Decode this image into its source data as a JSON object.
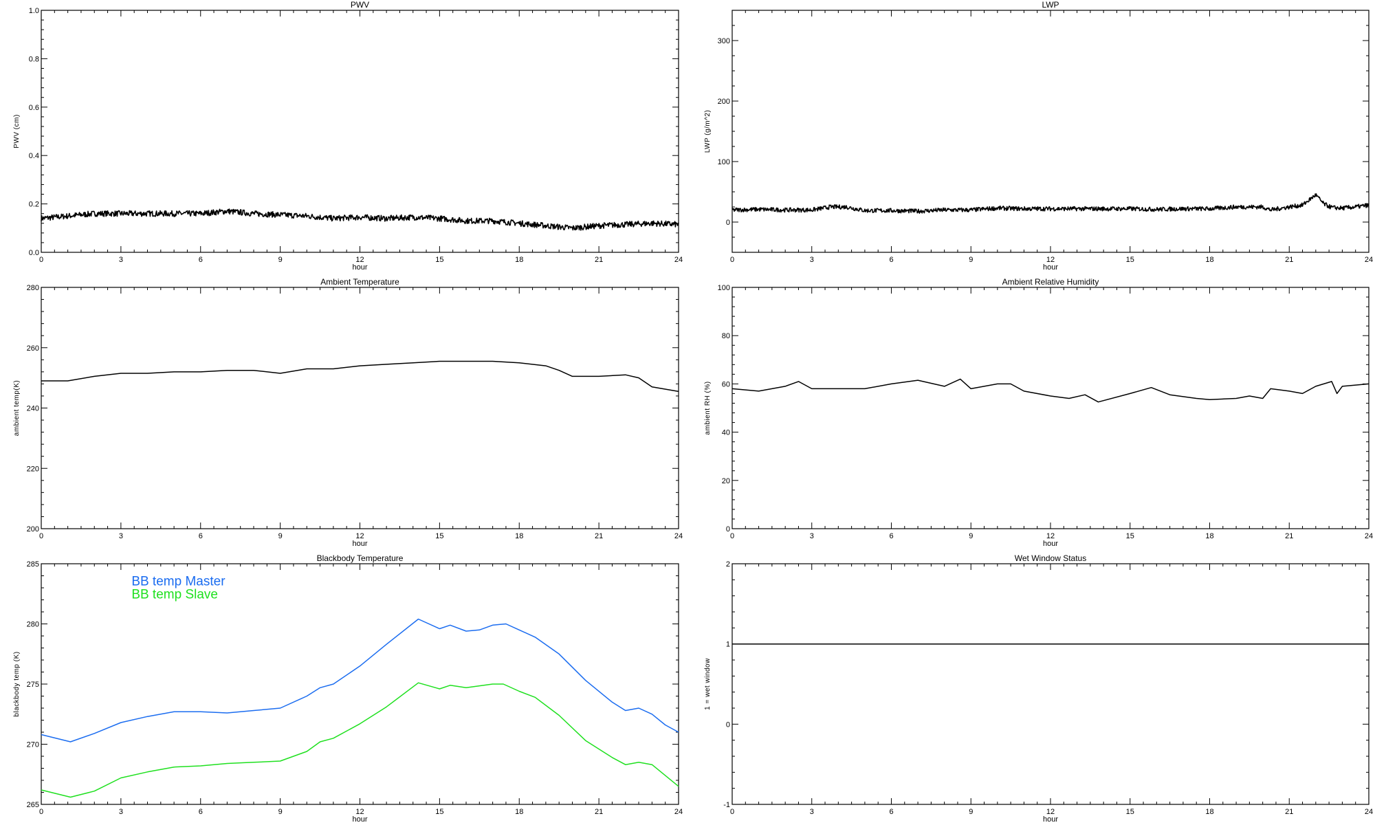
{
  "chart_data": [
    {
      "id": "pwv",
      "type": "line",
      "title": "PWV",
      "xlabel": "hour",
      "ylabel": "PWV (cm)",
      "xlim": [
        0,
        24
      ],
      "xticks": [
        0,
        3,
        6,
        9,
        12,
        15,
        18,
        21,
        24
      ],
      "ylim": [
        0,
        1
      ],
      "yticks": [
        0.0,
        0.2,
        0.4,
        0.6,
        0.8,
        1.0
      ],
      "ytick_labels": [
        "0.0",
        "0.2",
        "0.4",
        "0.6",
        "0.8",
        "1.0"
      ],
      "grid": false,
      "series": [
        {
          "color": "#000000",
          "noisy": true,
          "x": [
            0,
            1,
            2,
            3,
            4,
            5,
            6,
            7,
            8,
            9,
            10,
            11,
            12,
            13,
            14,
            15,
            16,
            17,
            18,
            19,
            20,
            21,
            22,
            23,
            24
          ],
          "y": [
            0.14,
            0.15,
            0.16,
            0.16,
            0.16,
            0.16,
            0.16,
            0.17,
            0.16,
            0.155,
            0.15,
            0.14,
            0.145,
            0.14,
            0.145,
            0.14,
            0.13,
            0.13,
            0.12,
            0.11,
            0.1,
            0.11,
            0.115,
            0.12,
            0.115
          ]
        }
      ]
    },
    {
      "id": "lwp",
      "type": "line",
      "title": "LWP",
      "xlabel": "hour",
      "ylabel": "LWP (g/m^2)",
      "xlim": [
        0,
        24
      ],
      "xticks": [
        0,
        3,
        6,
        9,
        12,
        15,
        18,
        21,
        24
      ],
      "ylim": [
        -50,
        350
      ],
      "yticks": [
        0,
        100,
        200,
        300
      ],
      "ytick_labels": [
        "0",
        "100",
        "200",
        "300"
      ],
      "grid": false,
      "series": [
        {
          "color": "#000000",
          "noisy": true,
          "x": [
            0,
            1,
            2,
            3,
            3.7,
            4.3,
            5,
            6,
            7,
            8,
            9,
            10,
            11,
            12,
            13,
            14,
            15,
            16,
            17,
            18,
            19,
            20,
            20.3,
            21,
            21.5,
            22,
            22.3,
            22.6,
            23,
            23.5,
            24
          ],
          "y": [
            20,
            21,
            20,
            20,
            25,
            25,
            19,
            19,
            18,
            20,
            20,
            23,
            22,
            22,
            22,
            22,
            22,
            21,
            22,
            22,
            25,
            25,
            20,
            25,
            28,
            45,
            30,
            24,
            23,
            25,
            28
          ]
        }
      ]
    },
    {
      "id": "ambient-temp",
      "type": "line",
      "title": "Ambient Temperature",
      "xlabel": "hour",
      "ylabel": "ambient temp(K)",
      "xlim": [
        0,
        24
      ],
      "xticks": [
        0,
        3,
        6,
        9,
        12,
        15,
        18,
        21,
        24
      ],
      "ylim": [
        200,
        280
      ],
      "yticks": [
        200,
        220,
        240,
        260,
        280
      ],
      "ytick_labels": [
        "200",
        "220",
        "240",
        "260",
        "280"
      ],
      "grid": false,
      "series": [
        {
          "color": "#000000",
          "x": [
            0,
            1,
            2,
            3,
            4,
            5,
            6,
            7,
            8,
            9,
            10,
            11,
            12,
            13,
            14,
            15,
            16,
            17,
            18,
            19,
            19.5,
            20,
            21,
            22,
            22.5,
            23,
            24
          ],
          "y": [
            249,
            249,
            250.5,
            251.5,
            251.5,
            252,
            252,
            252.5,
            252.5,
            251.5,
            253,
            253,
            254,
            254.5,
            255,
            255.5,
            255.5,
            255.5,
            255,
            254,
            252.5,
            250.5,
            250.5,
            251,
            250,
            247,
            245.5
          ]
        }
      ]
    },
    {
      "id": "ambient-rh",
      "type": "line",
      "title": "Ambient Relative Humidity",
      "xlabel": "hour",
      "ylabel": "ambient RH (%)",
      "xlim": [
        0,
        24
      ],
      "xticks": [
        0,
        3,
        6,
        9,
        12,
        15,
        18,
        21,
        24
      ],
      "ylim": [
        0,
        100
      ],
      "yticks": [
        0,
        20,
        40,
        60,
        80,
        100
      ],
      "ytick_labels": [
        "0",
        "20",
        "40",
        "60",
        "80",
        "100"
      ],
      "grid": false,
      "series": [
        {
          "color": "#000000",
          "x": [
            0,
            1,
            2,
            2.5,
            3,
            4,
            5,
            6,
            7,
            8,
            8.6,
            9,
            10,
            10.5,
            11,
            12,
            12.7,
            13.3,
            13.8,
            15,
            15.8,
            16.5,
            17.5,
            18,
            19,
            19.5,
            20,
            20.3,
            21,
            21.5,
            22,
            22.6,
            22.8,
            23,
            24
          ],
          "y": [
            58,
            57,
            59,
            61,
            58,
            58,
            58,
            60,
            61.5,
            59,
            62,
            58,
            60,
            60,
            57,
            55,
            54,
            55.5,
            52.5,
            56,
            58.5,
            55.5,
            54,
            53.5,
            54,
            55,
            54,
            58,
            57,
            56,
            59,
            61,
            56,
            59,
            60
          ]
        }
      ]
    },
    {
      "id": "blackbody-temp",
      "type": "line",
      "title": "Blackbody Temperature",
      "xlabel": "hour",
      "ylabel": "blackbody temp (K)",
      "xlim": [
        0,
        24
      ],
      "xticks": [
        0,
        3,
        6,
        9,
        12,
        15,
        18,
        21,
        24
      ],
      "ylim": [
        265,
        285
      ],
      "yticks": [
        265,
        270,
        275,
        280,
        285
      ],
      "ytick_labels": [
        "265",
        "270",
        "275",
        "280",
        "285"
      ],
      "grid": false,
      "legend": "top-left",
      "series": [
        {
          "name": "BB temp Master",
          "color": "#1a6cf0",
          "x": [
            0,
            1.1,
            2,
            3,
            4,
            5,
            6,
            7,
            8,
            9,
            10,
            10.5,
            11,
            12,
            13,
            14.2,
            15,
            15.4,
            16,
            16.5,
            17,
            17.5,
            18,
            18.6,
            19.5,
            20.5,
            21.5,
            22,
            22.5,
            23,
            23.5,
            24
          ],
          "y": [
            270.8,
            270.2,
            270.9,
            271.8,
            272.3,
            272.7,
            272.7,
            272.6,
            272.8,
            273,
            274,
            274.7,
            275,
            276.5,
            278.3,
            280.4,
            279.6,
            279.9,
            279.4,
            279.5,
            279.9,
            280,
            279.5,
            278.9,
            277.5,
            275.3,
            273.5,
            272.8,
            273,
            272.5,
            271.6,
            271
          ]
        },
        {
          "name": "BB temp Slave",
          "color": "#1ee01e",
          "x": [
            0,
            1.1,
            2,
            3,
            4,
            5,
            6,
            7,
            8,
            9,
            10,
            10.5,
            11,
            12,
            13,
            14.2,
            15,
            15.4,
            16,
            17,
            17.4,
            18,
            18.6,
            19.5,
            20.5,
            21.5,
            22,
            22.5,
            23,
            24
          ],
          "y": [
            266.2,
            265.6,
            266.1,
            267.2,
            267.7,
            268.1,
            268.2,
            268.4,
            268.5,
            268.6,
            269.4,
            270.2,
            270.5,
            271.7,
            273.1,
            275.1,
            274.6,
            274.9,
            274.7,
            275,
            275,
            274.4,
            273.9,
            272.4,
            270.3,
            268.9,
            268.3,
            268.5,
            268.3,
            266.5
          ]
        }
      ]
    },
    {
      "id": "wet-window",
      "type": "line",
      "title": "Wet Window Status",
      "xlabel": "hour",
      "ylabel": "1 = wet window",
      "xlim": [
        0,
        24
      ],
      "xticks": [
        0,
        3,
        6,
        9,
        12,
        15,
        18,
        21,
        24
      ],
      "ylim": [
        -1,
        2
      ],
      "yticks": [
        -1,
        0,
        1,
        2
      ],
      "ytick_labels": [
        "-1",
        "0",
        "1",
        "2"
      ],
      "grid": false,
      "series": [
        {
          "color": "#000000",
          "x": [
            0,
            24
          ],
          "y": [
            1,
            1
          ]
        }
      ]
    }
  ]
}
